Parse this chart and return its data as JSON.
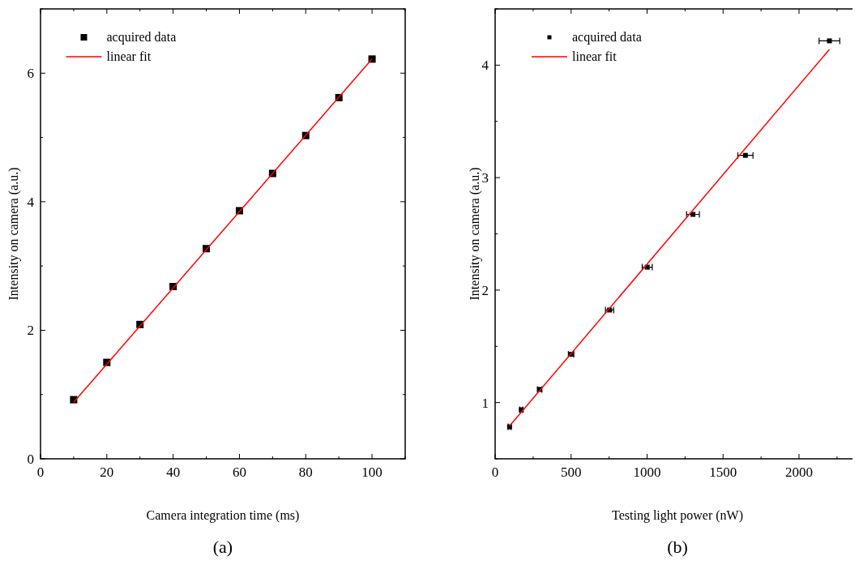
{
  "chart_data": [
    {
      "type": "scatter",
      "xlabel": "Camera integration time (ms)",
      "ylabel": "Intensity on camera (a.u.)",
      "annotations": [
        "(a)"
      ],
      "legend": "top left",
      "grid": false,
      "xlim": [
        0,
        110
      ],
      "xticks": [
        0,
        {
          "value": 10,
          "label": null
        },
        20,
        {
          "value": 30,
          "label": null
        },
        40,
        {
          "value": 50,
          "label": null
        },
        60,
        {
          "value": 70,
          "label": null
        },
        80,
        {
          "value": 90,
          "label": null
        },
        100,
        {
          "value": 110,
          "label": null
        }
      ],
      "ylim": [
        0,
        7
      ],
      "yticks": [
        0,
        {
          "value": 1,
          "label": null
        },
        2,
        {
          "value": 3,
          "label": null
        },
        4,
        {
          "value": 5,
          "label": null
        },
        6,
        {
          "value": 7,
          "label": null
        }
      ],
      "series": [
        {
          "type": "scatter",
          "name": "acquired data",
          "color": "#000000",
          "marker": "square",
          "x": [
            10,
            20,
            30,
            40,
            50,
            60,
            70,
            80,
            90,
            100
          ],
          "values": [
            0.92,
            1.5,
            2.09,
            2.68,
            3.27,
            3.86,
            4.44,
            5.03,
            5.62,
            6.22
          ]
        },
        {
          "type": "line",
          "name": "linear fit",
          "color": "#ff0000",
          "marker": "none",
          "line_style": "solid",
          "x": [
            10,
            100
          ],
          "values": [
            0.88,
            6.22
          ]
        }
      ]
    },
    {
      "type": "scatter",
      "xlabel": "Testing light power (nW)",
      "ylabel": "Intensity on camera (a.u.)",
      "annotations": [
        "(b)"
      ],
      "legend": "top left",
      "grid": false,
      "xlim": [
        0,
        2400
      ],
      "xticks": [
        0,
        {
          "value": 250,
          "label": null
        },
        500,
        {
          "value": 750,
          "label": null
        },
        1000,
        {
          "value": 1250,
          "label": null
        },
        1500,
        {
          "value": 1750,
          "label": null
        },
        2000,
        {
          "value": 2250,
          "label": null
        }
      ],
      "ylim": [
        0.5,
        4.5
      ],
      "yticks": [
        {
          "value": 0.5,
          "label": null
        },
        1,
        {
          "value": 1.5,
          "label": null
        },
        2,
        {
          "value": 2.5,
          "label": null
        },
        3,
        {
          "value": 3.5,
          "label": null
        },
        4,
        {
          "value": 4.5,
          "label": null
        }
      ],
      "series": [
        {
          "type": "scatter",
          "name": "acquired data",
          "color": "#000000",
          "marker": "square",
          "x": [
            95,
            172,
            293,
            500,
            753,
            1001,
            1302,
            1647,
            2200
          ],
          "values": [
            0.784,
            0.936,
            1.117,
            1.429,
            1.823,
            2.204,
            2.673,
            3.198,
            4.216
          ],
          "xerrors": [
            10,
            10,
            15,
            18,
            27,
            33,
            42,
            50,
            68
          ]
        },
        {
          "type": "line",
          "name": "linear fit",
          "color": "#ff0000",
          "marker": "none",
          "line_style": "solid",
          "x": [
            95,
            2200
          ],
          "values": [
            0.792,
            4.14
          ]
        }
      ]
    }
  ]
}
